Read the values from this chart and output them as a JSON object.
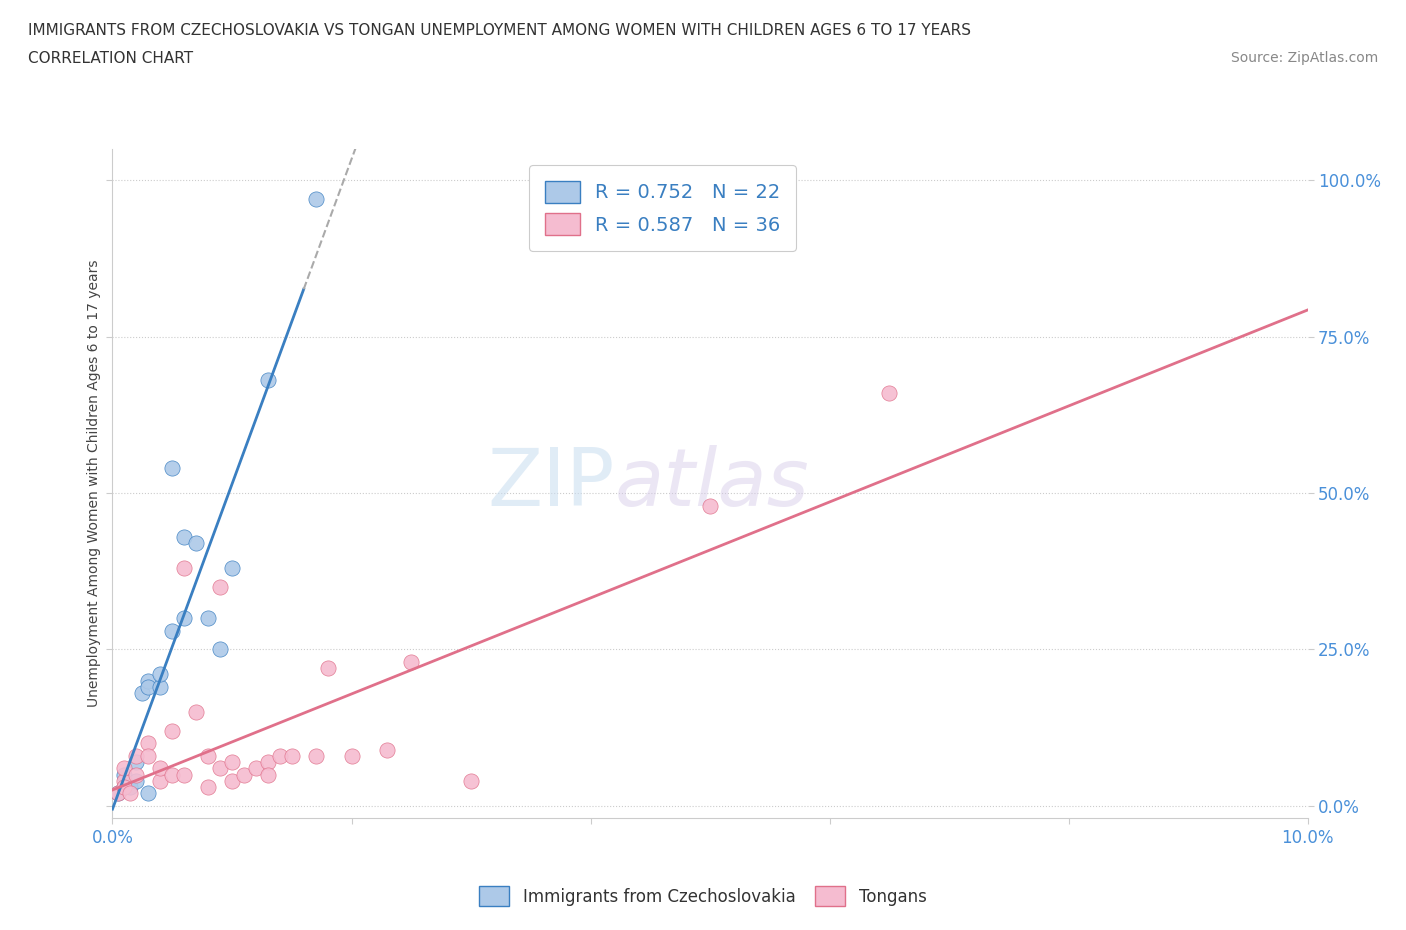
{
  "title_line1": "IMMIGRANTS FROM CZECHOSLOVAKIA VS TONGAN UNEMPLOYMENT AMONG WOMEN WITH CHILDREN AGES 6 TO 17 YEARS",
  "title_line2": "CORRELATION CHART",
  "source_text": "Source: ZipAtlas.com",
  "ylabel": "Unemployment Among Women with Children Ages 6 to 17 years",
  "xlim": [
    0.0,
    0.1
  ],
  "ylim": [
    -0.02,
    1.05
  ],
  "x_ticks": [
    0.0,
    0.02,
    0.04,
    0.06,
    0.08,
    0.1
  ],
  "x_tick_labels": [
    "0.0%",
    "",
    "",
    "",
    "",
    "10.0%"
  ],
  "y_ticks": [
    0.0,
    0.25,
    0.5,
    0.75,
    1.0
  ],
  "y_tick_labels": [
    "0.0%",
    "25.0%",
    "50.0%",
    "75.0%",
    "100.0%"
  ],
  "legend_label1": "R = 0.752   N = 22",
  "legend_label2": "R = 0.587   N = 36",
  "color_blue": "#adc9e8",
  "color_pink": "#f5bcd0",
  "trendline_blue": "#3a7fc1",
  "trendline_pink": "#e0708a",
  "watermark_zip": "ZIP",
  "watermark_atlas": "atlas",
  "blue_scatter": [
    [
      0.0005,
      0.02
    ],
    [
      0.001,
      0.03
    ],
    [
      0.001,
      0.05
    ],
    [
      0.0015,
      0.03
    ],
    [
      0.002,
      0.04
    ],
    [
      0.002,
      0.07
    ],
    [
      0.0025,
      0.18
    ],
    [
      0.003,
      0.2
    ],
    [
      0.003,
      0.19
    ],
    [
      0.003,
      0.02
    ],
    [
      0.004,
      0.19
    ],
    [
      0.004,
      0.21
    ],
    [
      0.005,
      0.54
    ],
    [
      0.005,
      0.28
    ],
    [
      0.006,
      0.43
    ],
    [
      0.006,
      0.3
    ],
    [
      0.007,
      0.42
    ],
    [
      0.008,
      0.3
    ],
    [
      0.009,
      0.25
    ],
    [
      0.01,
      0.38
    ],
    [
      0.013,
      0.68
    ],
    [
      0.017,
      0.97
    ]
  ],
  "pink_scatter": [
    [
      0.0005,
      0.02
    ],
    [
      0.001,
      0.04
    ],
    [
      0.001,
      0.03
    ],
    [
      0.001,
      0.06
    ],
    [
      0.0015,
      0.02
    ],
    [
      0.002,
      0.08
    ],
    [
      0.002,
      0.05
    ],
    [
      0.003,
      0.1
    ],
    [
      0.003,
      0.08
    ],
    [
      0.004,
      0.04
    ],
    [
      0.004,
      0.06
    ],
    [
      0.005,
      0.12
    ],
    [
      0.005,
      0.05
    ],
    [
      0.006,
      0.38
    ],
    [
      0.006,
      0.05
    ],
    [
      0.007,
      0.15
    ],
    [
      0.008,
      0.08
    ],
    [
      0.008,
      0.03
    ],
    [
      0.009,
      0.06
    ],
    [
      0.009,
      0.35
    ],
    [
      0.01,
      0.04
    ],
    [
      0.01,
      0.07
    ],
    [
      0.011,
      0.05
    ],
    [
      0.012,
      0.06
    ],
    [
      0.013,
      0.07
    ],
    [
      0.013,
      0.05
    ],
    [
      0.014,
      0.08
    ],
    [
      0.015,
      0.08
    ],
    [
      0.017,
      0.08
    ],
    [
      0.018,
      0.22
    ],
    [
      0.02,
      0.08
    ],
    [
      0.023,
      0.09
    ],
    [
      0.025,
      0.23
    ],
    [
      0.03,
      0.04
    ],
    [
      0.05,
      0.48
    ],
    [
      0.065,
      0.66
    ]
  ]
}
